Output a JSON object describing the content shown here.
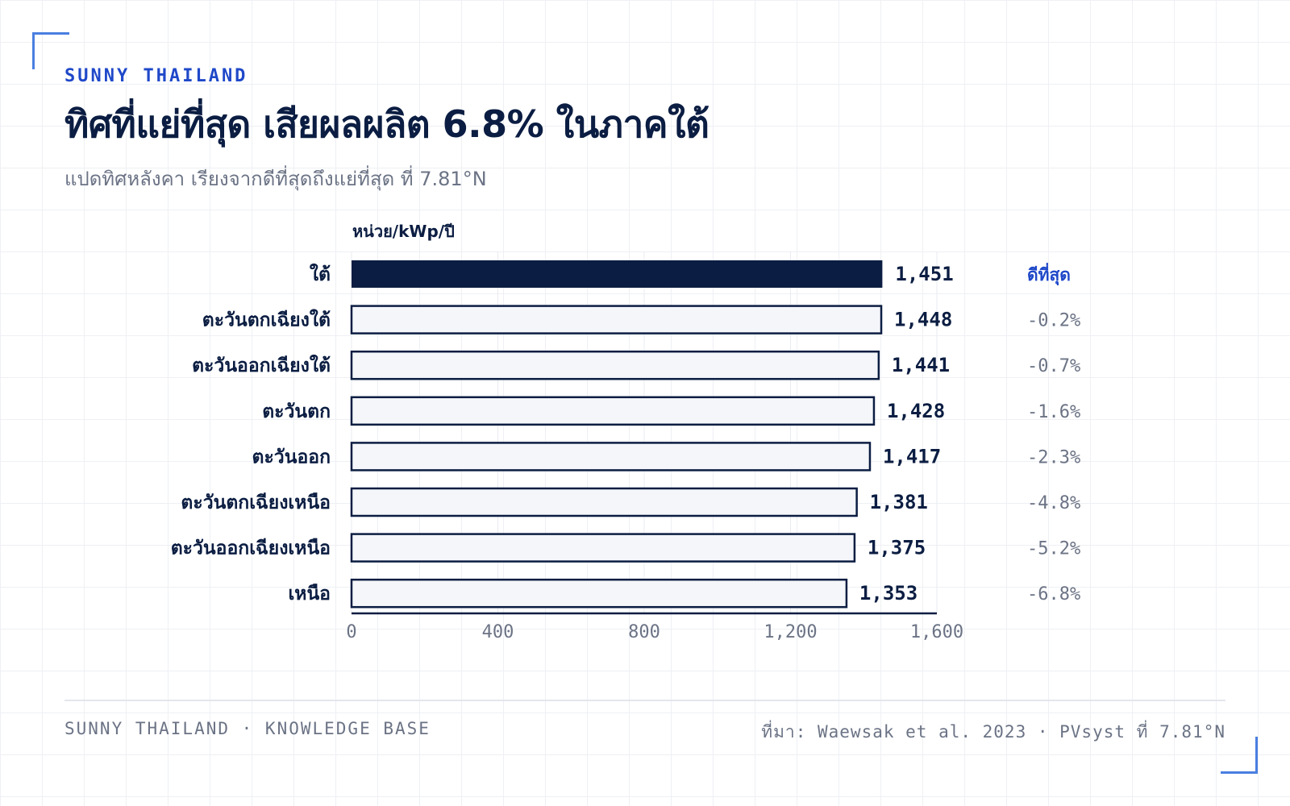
{
  "header": {
    "brand": "SUNNY THAILAND",
    "title": "ทิศที่แย่ที่สุด เสียผลผลิต 6.8% ในภาคใต้",
    "subtitle": "แปดทิศหลังคา เรียงจากดีที่สุดถึงแย่ที่สุด ที่ 7.81°N"
  },
  "footer": {
    "left": "SUNNY THAILAND · KNOWLEDGE BASE",
    "right": "ที่มา: Waewsak et al. 2023 · PVsyst ที่ 7.81°N"
  },
  "chart_data": {
    "type": "bar",
    "orientation": "horizontal",
    "unit_label": "หน่วย/kWp/ปี",
    "categories": [
      "ใต้",
      "ตะวันตกเฉียงใต้",
      "ตะวันออกเฉียงใต้",
      "ตะวันตก",
      "ตะวันออก",
      "ตะวันตกเฉียงเหนือ",
      "ตะวันออกเฉียงเหนือ",
      "เหนือ"
    ],
    "values": [
      1451,
      1448,
      1441,
      1428,
      1417,
      1381,
      1375,
      1353
    ],
    "value_labels": [
      "1,451",
      "1,448",
      "1,441",
      "1,428",
      "1,417",
      "1,381",
      "1,375",
      "1,353"
    ],
    "annotations": [
      "ดีที่สุด",
      "-0.2%",
      "-0.7%",
      "-1.6%",
      "-2.3%",
      "-4.8%",
      "-5.2%",
      "-6.8%"
    ],
    "xlim": [
      0,
      1600
    ],
    "xticks": [
      0,
      400,
      800,
      1200,
      1600
    ],
    "xtick_labels": [
      "0",
      "400",
      "800",
      "1,200",
      "1,600"
    ],
    "highlight_index": 0,
    "colors": {
      "highlight": "#0b1d42",
      "bar_fill": "#f4f6f9",
      "bar_stroke": "#0b1d42",
      "best_label": "#1f48c9",
      "delta_label": "#6b7385",
      "axis_text": "#6b7385"
    }
  }
}
